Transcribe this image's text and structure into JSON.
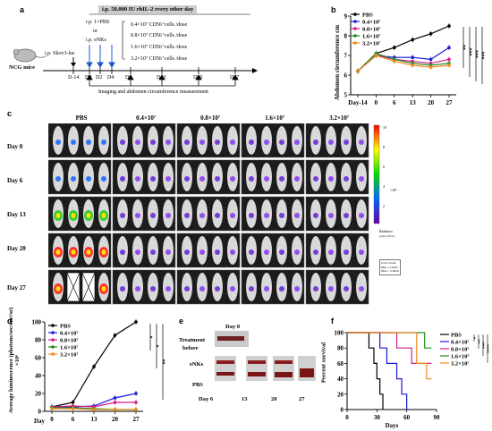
{
  "panel_a": {
    "label": "a",
    "header": "i.p. 50,000 IU rhIL-2 every other day",
    "group1": "i.p. 1×PBS",
    "or": "or",
    "group2": "i.p. eNKs",
    "tumor": "i.p. Skov3-luc",
    "mice": "NCG mice",
    "days": [
      "D-14",
      "D0",
      "D2",
      "D4",
      "D6",
      "D13",
      "D20",
      "D27"
    ],
    "doses": [
      "0.4×10⁷ CD56⁺cells /dose",
      "0.8×10⁷ CD56⁺cells /dose",
      "1.6×10⁷ CD56⁺cells /dose",
      "3.2×10⁷ CD56⁺cells /dose"
    ],
    "bottom": "Imaging and abdomen circumference measurement"
  },
  "panel_b": {
    "label": "b",
    "chart_data": {
      "type": "line",
      "ylabel": "Abdomen circumference cm",
      "xlabel": "",
      "categories": [
        "Day-14",
        "0",
        "6",
        "13",
        "20",
        "27"
      ],
      "ylim": [
        5,
        9
      ],
      "yticks": [
        "5",
        "6",
        "7",
        "8",
        "9"
      ],
      "series": [
        {
          "name": "PBS",
          "color": "#000000",
          "values": [
            6.2,
            7.1,
            7.4,
            7.8,
            8.1,
            8.5
          ]
        },
        {
          "name": "0.4×10⁷",
          "color": "#1a1adb",
          "values": [
            6.2,
            7.0,
            6.9,
            6.9,
            6.8,
            7.4
          ]
        },
        {
          "name": "0.8×10⁷",
          "color": "#d81b8a",
          "values": [
            6.2,
            7.0,
            6.8,
            6.7,
            6.6,
            6.8
          ]
        },
        {
          "name": "1.6×10⁷",
          "color": "#1f8a1f",
          "values": [
            6.2,
            7.1,
            6.8,
            6.6,
            6.5,
            6.6
          ]
        },
        {
          "name": "3.2×10⁷",
          "color": "#f08a1c",
          "values": [
            6.2,
            7.0,
            6.7,
            6.5,
            6.4,
            6.5
          ]
        }
      ],
      "sig": [
        "**",
        "***",
        "***",
        "***"
      ]
    }
  },
  "panel_c": {
    "label": "c",
    "columns": [
      "PBS",
      "0.4×10⁷",
      "0.8×10⁷",
      "1.6×10⁷",
      "3.2×10⁷"
    ],
    "rows": [
      "Day 0",
      "Day 6",
      "Day 13",
      "Day 20",
      "Day 27"
    ],
    "scale_title": "Radiance",
    "scale_unit": "p/sec/cm²/sr",
    "scale_mult": "×10⁵",
    "scale_ticks": [
      "10",
      "8",
      "6",
      "4",
      "2"
    ],
    "color_scale_note": [
      "Color Scale",
      "Min = 2.00e5",
      "Max = 2.00e6"
    ]
  },
  "panel_d": {
    "label": "d",
    "chart_data": {
      "type": "line",
      "ylabel": "Average luminescence (photons/sec/cm²/sr) ×10⁶",
      "xlabel": "Day",
      "categories": [
        "0",
        "6",
        "13",
        "20",
        "27"
      ],
      "ylim": [
        0,
        100
      ],
      "yticks": [
        "0",
        "20",
        "40",
        "60",
        "80",
        "100"
      ],
      "series": [
        {
          "name": "PBS",
          "color": "#000000",
          "values": [
            5,
            10,
            50,
            85,
            100
          ]
        },
        {
          "name": "0.4×10⁷",
          "color": "#1a1adb",
          "values": [
            5,
            5,
            6,
            15,
            20
          ]
        },
        {
          "name": "0.8×10⁷",
          "color": "#d81b8a",
          "values": [
            5,
            6,
            5,
            10,
            10
          ]
        },
        {
          "name": "1.6×10⁷",
          "color": "#1f8a1f",
          "values": [
            4,
            4,
            3,
            2,
            2
          ]
        },
        {
          "name": "3.2×10⁷",
          "color": "#f08a1c",
          "values": [
            3,
            3,
            2,
            2,
            2
          ]
        }
      ],
      "sig": [
        "*",
        "*",
        "**"
      ]
    }
  },
  "panel_e": {
    "label": "e",
    "day0": "Day 0",
    "treatment": "Treatment",
    "before": "before",
    "enks": "eNKs",
    "pbs": "PBS",
    "days": [
      "Day 6",
      "13",
      "20",
      "27"
    ]
  },
  "panel_f": {
    "label": "f",
    "chart_data": {
      "type": "line",
      "ylabel": "Percent survival",
      "xlabel": "Days",
      "xticks": [
        "0",
        "30",
        "60",
        "90"
      ],
      "xlim": [
        0,
        90
      ],
      "ylim": [
        0,
        100
      ],
      "yticks": [
        "0",
        "20",
        "40",
        "60",
        "80",
        "100"
      ],
      "series": [
        {
          "name": "PBS",
          "color": "#000000",
          "steps": [
            [
              0,
              100
            ],
            [
              22,
              100
            ],
            [
              22,
              80
            ],
            [
              27,
              80
            ],
            [
              27,
              60
            ],
            [
              30,
              60
            ],
            [
              30,
              40
            ],
            [
              33,
              40
            ],
            [
              33,
              20
            ],
            [
              36,
              20
            ],
            [
              36,
              0
            ]
          ]
        },
        {
          "name": "0.4×10⁷",
          "color": "#1a1adb",
          "steps": [
            [
              0,
              100
            ],
            [
              33,
              100
            ],
            [
              33,
              80
            ],
            [
              40,
              80
            ],
            [
              40,
              60
            ],
            [
              50,
              60
            ],
            [
              50,
              40
            ],
            [
              55,
              40
            ],
            [
              55,
              20
            ],
            [
              60,
              20
            ],
            [
              60,
              0
            ]
          ]
        },
        {
          "name": "0.8×10⁷",
          "color": "#d81b8a",
          "steps": [
            [
              0,
              100
            ],
            [
              50,
              100
            ],
            [
              50,
              80
            ],
            [
              65,
              80
            ],
            [
              65,
              60
            ],
            [
              80,
              60
            ],
            [
              80,
              60
            ],
            [
              85,
              60
            ]
          ]
        },
        {
          "name": "1.6×10⁷",
          "color": "#1f8a1f",
          "steps": [
            [
              0,
              100
            ],
            [
              78,
              100
            ],
            [
              78,
              80
            ],
            [
              85,
              80
            ]
          ]
        },
        {
          "name": "3.2×10⁷",
          "color": "#f08a1c",
          "steps": [
            [
              0,
              100
            ],
            [
              70,
              100
            ],
            [
              70,
              60
            ],
            [
              80,
              60
            ],
            [
              80,
              40
            ],
            [
              85,
              40
            ]
          ]
        }
      ],
      "sig": [
        "*",
        "**",
        "***",
        "****"
      ]
    }
  }
}
